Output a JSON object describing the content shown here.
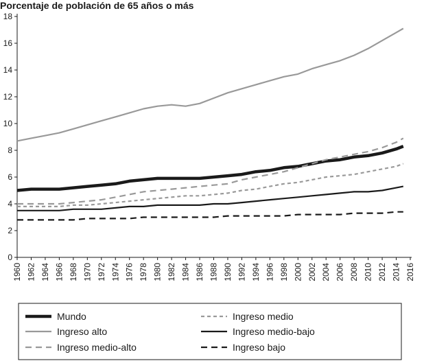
{
  "chart_data": {
    "type": "line",
    "title": "Porcentaje de población de 65 años o más",
    "xlabel": "",
    "ylabel": "",
    "xlim": [
      1960,
      2016
    ],
    "ylim": [
      0,
      18
    ],
    "x_ticks": [
      "1960",
      "1962",
      "1964",
      "1966",
      "1968",
      "1970",
      "1972",
      "1974",
      "1976",
      "1978",
      "1980",
      "1982",
      "1984",
      "1986",
      "1988",
      "1990",
      "1992",
      "1994",
      "1996",
      "1998",
      "2000",
      "2002",
      "2004",
      "2006",
      "2008",
      "2010",
      "2012",
      "2014",
      "2016"
    ],
    "y_ticks": [
      "0",
      "2",
      "4",
      "6",
      "8",
      "10",
      "12",
      "14",
      "16",
      "18"
    ],
    "grid": false,
    "legend_position": "bottom",
    "x": [
      1960,
      1962,
      1964,
      1966,
      1968,
      1970,
      1972,
      1974,
      1976,
      1978,
      1980,
      1982,
      1984,
      1986,
      1988,
      1990,
      1992,
      1994,
      1996,
      1998,
      2000,
      2002,
      2004,
      2006,
      2008,
      2010,
      2012,
      2014,
      2015
    ],
    "series": [
      {
        "name": "Mundo",
        "color": "#1a1a1a",
        "style": "solid-thick",
        "values": [
          5.0,
          5.1,
          5.1,
          5.1,
          5.2,
          5.3,
          5.4,
          5.5,
          5.7,
          5.8,
          5.9,
          5.9,
          5.9,
          5.9,
          6.0,
          6.1,
          6.2,
          6.4,
          6.5,
          6.7,
          6.8,
          7.0,
          7.2,
          7.3,
          7.5,
          7.6,
          7.8,
          8.1,
          8.3
        ]
      },
      {
        "name": "Ingreso alto",
        "color": "#999999",
        "style": "solid",
        "values": [
          8.7,
          8.9,
          9.1,
          9.3,
          9.6,
          9.9,
          10.2,
          10.5,
          10.8,
          11.1,
          11.3,
          11.4,
          11.3,
          11.5,
          11.9,
          12.3,
          12.6,
          12.9,
          13.2,
          13.5,
          13.7,
          14.1,
          14.4,
          14.7,
          15.1,
          15.6,
          16.2,
          16.8,
          17.1
        ]
      },
      {
        "name": "Ingreso medio-alto",
        "color": "#999999",
        "style": "dashed-long",
        "values": [
          4.0,
          4.0,
          4.0,
          4.0,
          4.1,
          4.2,
          4.3,
          4.5,
          4.7,
          4.9,
          5.0,
          5.1,
          5.2,
          5.3,
          5.4,
          5.5,
          5.8,
          6.0,
          6.2,
          6.4,
          6.7,
          7.0,
          7.3,
          7.5,
          7.7,
          7.9,
          8.2,
          8.6,
          8.9
        ]
      },
      {
        "name": "Ingreso medio",
        "color": "#999999",
        "style": "dashed-short",
        "values": [
          3.8,
          3.8,
          3.8,
          3.8,
          3.9,
          3.9,
          4.0,
          4.1,
          4.2,
          4.3,
          4.4,
          4.5,
          4.6,
          4.6,
          4.7,
          4.8,
          5.0,
          5.1,
          5.3,
          5.5,
          5.6,
          5.8,
          6.0,
          6.1,
          6.2,
          6.4,
          6.6,
          6.8,
          7.0
        ]
      },
      {
        "name": "Ingreso medio-bajo",
        "color": "#1a1a1a",
        "style": "solid",
        "values": [
          3.5,
          3.5,
          3.5,
          3.5,
          3.6,
          3.6,
          3.6,
          3.7,
          3.8,
          3.8,
          3.9,
          3.9,
          3.9,
          3.9,
          4.0,
          4.0,
          4.1,
          4.2,
          4.3,
          4.4,
          4.5,
          4.6,
          4.7,
          4.8,
          4.9,
          4.9,
          5.0,
          5.2,
          5.3
        ]
      },
      {
        "name": "Ingreso bajo",
        "color": "#1a1a1a",
        "style": "dashed-long",
        "values": [
          2.8,
          2.8,
          2.8,
          2.8,
          2.8,
          2.9,
          2.9,
          2.9,
          2.9,
          3.0,
          3.0,
          3.0,
          3.0,
          3.0,
          3.0,
          3.1,
          3.1,
          3.1,
          3.1,
          3.1,
          3.2,
          3.2,
          3.2,
          3.2,
          3.3,
          3.3,
          3.3,
          3.4,
          3.4
        ]
      }
    ]
  }
}
